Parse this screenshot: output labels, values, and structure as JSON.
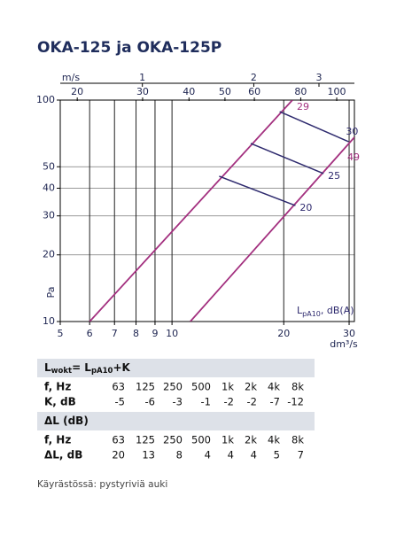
{
  "chart_data": {
    "type": "line",
    "title": "OKA-125 ja OKA-125P",
    "x_label": "dm³/s",
    "y_label": "Pa",
    "log_x": true,
    "log_y": true,
    "grid": true,
    "xlim": [
      5,
      31
    ],
    "xticks": [
      5,
      6,
      7,
      8,
      9,
      10,
      20,
      30
    ],
    "ylim": [
      10,
      100
    ],
    "yticks": [
      10,
      20,
      30,
      40,
      50,
      100
    ],
    "top_axes": [
      {
        "label": "m/s",
        "xlim": [
          0.6,
          3.74
        ],
        "xticks": [
          1,
          2,
          3
        ]
      },
      {
        "xlim": [
          18,
          111.6
        ],
        "xticks": [
          20,
          30,
          40,
          50,
          60,
          80,
          100
        ]
      }
    ],
    "series": [
      {
        "name": "29",
        "color": "#a3307f",
        "x": [
          6,
          21.1
        ],
        "values": [
          10,
          100
        ]
      },
      {
        "name": "49",
        "color": "#a3307f",
        "x": [
          11.2,
          31
        ],
        "values": [
          10,
          67.9
        ]
      },
      {
        "name": "30",
        "color": "#2e2a6e",
        "x": [
          19.5,
          29.9
        ],
        "values": [
          88.7,
          64.9
        ]
      },
      {
        "name": "25",
        "color": "#2e2a6e",
        "x": [
          16.3,
          25.6
        ],
        "values": [
          63.7,
          46.6
        ]
      },
      {
        "name": "20",
        "color": "#2e2a6e",
        "x": [
          13.4,
          21.5
        ],
        "values": [
          45.3,
          33.4
        ]
      }
    ],
    "level_label": [
      "L",
      "pA10",
      ", dB(A)"
    ]
  },
  "tables": [
    {
      "title": [
        "L",
        "wokt",
        "= L",
        "pA10",
        "+K"
      ],
      "rows": [
        [
          "f, Hz",
          "63",
          "125",
          "250",
          "500",
          "1k",
          "2k",
          "4k",
          "8k"
        ],
        [
          "K, dB",
          "-5",
          "-6",
          "-3",
          "-1",
          "-2",
          "-2",
          "-7",
          "-12"
        ]
      ]
    },
    {
      "title": [
        "ΔL (dB)"
      ],
      "rows": [
        [
          "f, Hz",
          "63",
          "125",
          "250",
          "500",
          "1k",
          "2k",
          "4k",
          "8k"
        ],
        [
          "ΔL, dB",
          "20",
          "13",
          "8",
          "4",
          "4",
          "4",
          "5",
          "7"
        ]
      ]
    }
  ],
  "footnote": "Käyrästössä: pystyriviä auki"
}
